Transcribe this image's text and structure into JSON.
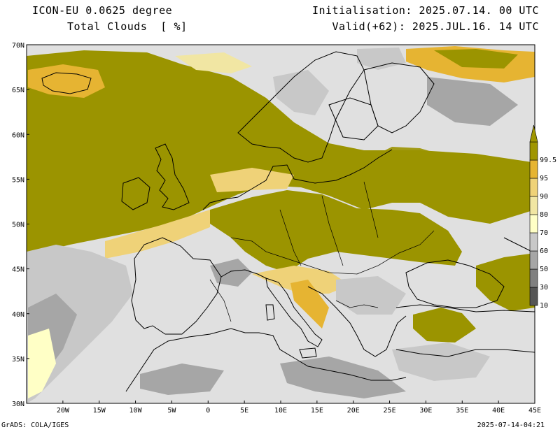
{
  "header": {
    "model": "ICON-EU 0.0625 degree",
    "field": "Total Clouds  [ %]",
    "init": "Initialisation: 2025.07.14. 00 UTC",
    "valid": "Valid(+62): 2025.JUL.16. 14 UTC"
  },
  "footer": {
    "left": "GrADS: COLA/IGES",
    "right": "2025-07-14-04:21"
  },
  "map": {
    "lon_range": [
      -25,
      45
    ],
    "lat_range": [
      30,
      70
    ],
    "lat_ticks": [
      "30N",
      "35N",
      "40N",
      "45N",
      "50N",
      "55N",
      "60N",
      "65N",
      "70N"
    ],
    "lon_ticks": [
      "20W",
      "15W",
      "10W",
      "5W",
      "0",
      "5E",
      "10E",
      "15E",
      "20E",
      "25E",
      "30E",
      "35E",
      "40E",
      "45E"
    ]
  },
  "colorbar": {
    "labels": [
      "10",
      "30",
      "50",
      "60",
      "70",
      "80",
      "90",
      "95",
      "99.5"
    ],
    "colors": [
      "#555555",
      "#808080",
      "#a6a6a6",
      "#c8c8c8",
      "#ffffc6",
      "#f1e6a3",
      "#efd278",
      "#e6b432",
      "#a09600"
    ]
  },
  "colors": {
    "clear": "#e0e0e0",
    "overcast": "#9b9400",
    "coast": "#000000"
  }
}
